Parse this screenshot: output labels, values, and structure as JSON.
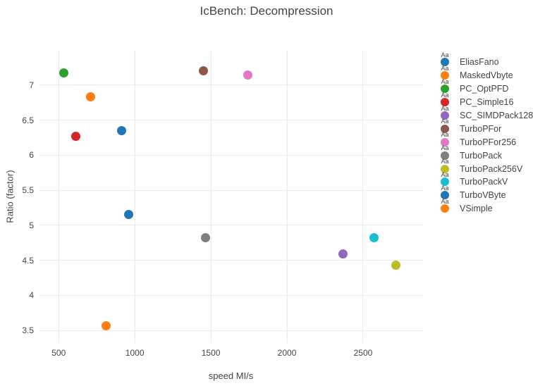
{
  "chart_data": {
    "type": "scatter",
    "title": "IcBench: Decompression",
    "xlabel": "speed MI/s",
    "ylabel": "Ratio (factor)",
    "xlim": [
      369,
      2894
    ],
    "ylim": [
      3.32,
      7.5
    ],
    "x_ticks": [
      500,
      1000,
      1500,
      2000,
      2500
    ],
    "y_ticks": [
      3.5,
      4,
      4.5,
      5,
      5.5,
      6,
      6.5,
      7
    ],
    "grid": true,
    "legend_position": "right",
    "legend_sample_text": "Aa",
    "marker_size_px": 13,
    "styles": {
      "grid_color": "#ebebeb",
      "text_color": "#444444",
      "background": "#ffffff"
    },
    "series": [
      {
        "name": "EliasFano",
        "color": "#1f77b4",
        "x": 915,
        "y": 6.35
      },
      {
        "name": "MaskedVbyte",
        "color": "#ff7f0e",
        "x": 810,
        "y": 3.57
      },
      {
        "name": "PC_OptPFD",
        "color": "#2ca02c",
        "x": 534,
        "y": 7.17
      },
      {
        "name": "PC_Simple16",
        "color": "#d62728",
        "x": 613,
        "y": 6.27
      },
      {
        "name": "SC_SIMDPack128",
        "color": "#9467bd",
        "x": 2370,
        "y": 4.59
      },
      {
        "name": "TurboPFor",
        "color": "#8c564b",
        "x": 1453,
        "y": 7.2
      },
      {
        "name": "TurboPFor256",
        "color": "#e377c2",
        "x": 1744,
        "y": 7.14
      },
      {
        "name": "TurboPack",
        "color": "#7f7f7f",
        "x": 1466,
        "y": 4.82
      },
      {
        "name": "TurboPack256V",
        "color": "#bcbd22",
        "x": 2716,
        "y": 4.43
      },
      {
        "name": "TurboPackV",
        "color": "#17becf",
        "x": 2570,
        "y": 4.82
      },
      {
        "name": "TurboVByte",
        "color": "#1f77b4",
        "x": 960,
        "y": 5.15
      },
      {
        "name": "VSimple",
        "color": "#ff7f0e",
        "x": 708,
        "y": 6.83
      }
    ]
  }
}
